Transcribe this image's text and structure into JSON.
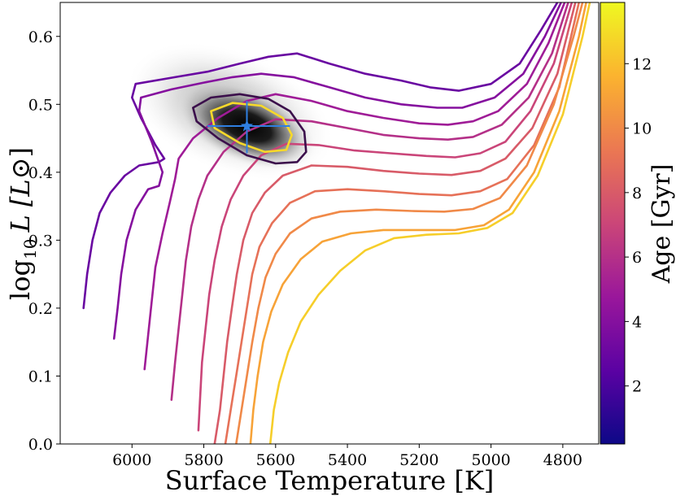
{
  "chart_data": {
    "type": "line",
    "title": "",
    "xlabel": "Surface Temperature [K]",
    "ylabel_main": "log",
    "ylabel_sub": "10",
    "ylabel_rest": "L [L",
    "ylabel_sun": "⊙",
    "ylabel_close": "]",
    "x_reversed": true,
    "xlim": [
      6200,
      4700
    ],
    "ylim": [
      0.0,
      0.65
    ],
    "xticks": [
      6000,
      5800,
      5600,
      5400,
      5200,
      5000,
      4800
    ],
    "yticks": [
      0.0,
      0.1,
      0.2,
      0.3,
      0.4,
      0.5,
      0.6
    ],
    "colorbar": {
      "label": "Age [Gyr]",
      "range": [
        0.2,
        13.9
      ],
      "ticks": [
        2,
        4,
        6,
        8,
        10,
        12
      ],
      "colormap": [
        "#0d0887",
        "#5b02a3",
        "#9a179b",
        "#cb4678",
        "#eb7852",
        "#fbb32f",
        "#eff821"
      ]
    },
    "isochrones": [
      {
        "age": 3.0,
        "points": [
          [
            6135,
            0.2
          ],
          [
            6125,
            0.25
          ],
          [
            6110,
            0.3
          ],
          [
            6090,
            0.34
          ],
          [
            6060,
            0.37
          ],
          [
            6020,
            0.395
          ],
          [
            5980,
            0.41
          ],
          [
            5925,
            0.415
          ],
          [
            5910,
            0.42
          ],
          [
            5935,
            0.44
          ],
          [
            5975,
            0.48
          ],
          [
            6000,
            0.51
          ],
          [
            5990,
            0.53
          ],
          [
            5880,
            0.54
          ],
          [
            5790,
            0.548
          ],
          [
            5700,
            0.56
          ],
          [
            5620,
            0.57
          ],
          [
            5540,
            0.575
          ],
          [
            5450,
            0.56
          ],
          [
            5350,
            0.545
          ],
          [
            5250,
            0.535
          ],
          [
            5170,
            0.525
          ],
          [
            5090,
            0.52
          ],
          [
            5000,
            0.53
          ],
          [
            4920,
            0.56
          ],
          [
            4860,
            0.61
          ],
          [
            4815,
            0.65
          ]
        ]
      },
      {
        "age": 4.0,
        "points": [
          [
            6050,
            0.155
          ],
          [
            6040,
            0.2
          ],
          [
            6030,
            0.25
          ],
          [
            6015,
            0.3
          ],
          [
            5990,
            0.345
          ],
          [
            5955,
            0.375
          ],
          [
            5925,
            0.38
          ],
          [
            5915,
            0.4
          ],
          [
            5945,
            0.445
          ],
          [
            5980,
            0.49
          ],
          [
            5975,
            0.51
          ],
          [
            5890,
            0.522
          ],
          [
            5800,
            0.532
          ],
          [
            5720,
            0.54
          ],
          [
            5640,
            0.545
          ],
          [
            5550,
            0.54
          ],
          [
            5450,
            0.525
          ],
          [
            5350,
            0.51
          ],
          [
            5250,
            0.5
          ],
          [
            5150,
            0.495
          ],
          [
            5080,
            0.495
          ],
          [
            4990,
            0.51
          ],
          [
            4910,
            0.545
          ],
          [
            4850,
            0.6
          ],
          [
            4805,
            0.65
          ]
        ]
      },
      {
        "age": 5.0,
        "points": [
          [
            5965,
            0.11
          ],
          [
            5955,
            0.16
          ],
          [
            5945,
            0.21
          ],
          [
            5935,
            0.26
          ],
          [
            5915,
            0.31
          ],
          [
            5895,
            0.355
          ],
          [
            5880,
            0.39
          ],
          [
            5870,
            0.42
          ],
          [
            5830,
            0.45
          ],
          [
            5760,
            0.48
          ],
          [
            5680,
            0.505
          ],
          [
            5600,
            0.515
          ],
          [
            5500,
            0.505
          ],
          [
            5400,
            0.49
          ],
          [
            5300,
            0.48
          ],
          [
            5200,
            0.472
          ],
          [
            5120,
            0.47
          ],
          [
            5050,
            0.475
          ],
          [
            4980,
            0.49
          ],
          [
            4900,
            0.53
          ],
          [
            4840,
            0.59
          ],
          [
            4795,
            0.65
          ]
        ]
      },
      {
        "age": 6.0,
        "points": [
          [
            5890,
            0.065
          ],
          [
            5880,
            0.12
          ],
          [
            5870,
            0.17
          ],
          [
            5860,
            0.22
          ],
          [
            5850,
            0.27
          ],
          [
            5835,
            0.32
          ],
          [
            5815,
            0.36
          ],
          [
            5790,
            0.395
          ],
          [
            5745,
            0.43
          ],
          [
            5680,
            0.46
          ],
          [
            5600,
            0.478
          ],
          [
            5500,
            0.475
          ],
          [
            5400,
            0.465
          ],
          [
            5300,
            0.455
          ],
          [
            5200,
            0.45
          ],
          [
            5120,
            0.448
          ],
          [
            5050,
            0.452
          ],
          [
            4970,
            0.47
          ],
          [
            4895,
            0.51
          ],
          [
            4830,
            0.575
          ],
          [
            4785,
            0.65
          ]
        ]
      },
      {
        "age": 7.0,
        "points": [
          [
            5815,
            0.02
          ],
          [
            5810,
            0.07
          ],
          [
            5805,
            0.12
          ],
          [
            5795,
            0.17
          ],
          [
            5785,
            0.22
          ],
          [
            5770,
            0.27
          ],
          [
            5750,
            0.32
          ],
          [
            5725,
            0.36
          ],
          [
            5690,
            0.395
          ],
          [
            5640,
            0.425
          ],
          [
            5570,
            0.442
          ],
          [
            5480,
            0.44
          ],
          [
            5380,
            0.432
          ],
          [
            5280,
            0.428
          ],
          [
            5180,
            0.424
          ],
          [
            5100,
            0.422
          ],
          [
            5030,
            0.428
          ],
          [
            4960,
            0.445
          ],
          [
            4890,
            0.49
          ],
          [
            4825,
            0.56
          ],
          [
            4775,
            0.65
          ]
        ]
      },
      {
        "age": 8.0,
        "points": [
          [
            5770,
            0.0
          ],
          [
            5755,
            0.05
          ],
          [
            5745,
            0.1
          ],
          [
            5735,
            0.15
          ],
          [
            5722,
            0.2
          ],
          [
            5708,
            0.25
          ],
          [
            5690,
            0.3
          ],
          [
            5665,
            0.34
          ],
          [
            5630,
            0.37
          ],
          [
            5580,
            0.395
          ],
          [
            5500,
            0.41
          ],
          [
            5400,
            0.408
          ],
          [
            5300,
            0.402
          ],
          [
            5200,
            0.398
          ],
          [
            5110,
            0.396
          ],
          [
            5030,
            0.402
          ],
          [
            4960,
            0.42
          ],
          [
            4885,
            0.465
          ],
          [
            4815,
            0.545
          ],
          [
            4765,
            0.65
          ]
        ]
      },
      {
        "age": 9.0,
        "points": [
          [
            5740,
            0.0
          ],
          [
            5725,
            0.05
          ],
          [
            5710,
            0.1
          ],
          [
            5695,
            0.15
          ],
          [
            5680,
            0.2
          ],
          [
            5665,
            0.25
          ],
          [
            5645,
            0.29
          ],
          [
            5610,
            0.325
          ],
          [
            5560,
            0.355
          ],
          [
            5490,
            0.372
          ],
          [
            5400,
            0.375
          ],
          [
            5300,
            0.372
          ],
          [
            5200,
            0.368
          ],
          [
            5110,
            0.366
          ],
          [
            5030,
            0.372
          ],
          [
            4955,
            0.39
          ],
          [
            4880,
            0.44
          ],
          [
            4810,
            0.525
          ],
          [
            4755,
            0.65
          ]
        ]
      },
      {
        "age": 10.0,
        "points": [
          [
            5710,
            0.0
          ],
          [
            5695,
            0.05
          ],
          [
            5680,
            0.1
          ],
          [
            5665,
            0.15
          ],
          [
            5648,
            0.2
          ],
          [
            5628,
            0.245
          ],
          [
            5600,
            0.28
          ],
          [
            5560,
            0.31
          ],
          [
            5500,
            0.332
          ],
          [
            5420,
            0.342
          ],
          [
            5320,
            0.345
          ],
          [
            5220,
            0.343
          ],
          [
            5130,
            0.342
          ],
          [
            5050,
            0.346
          ],
          [
            4975,
            0.362
          ],
          [
            4900,
            0.41
          ],
          [
            4825,
            0.5
          ],
          [
            4770,
            0.6
          ],
          [
            4745,
            0.65
          ]
        ]
      },
      {
        "age": 11.0,
        "points": [
          [
            5670,
            0.0
          ],
          [
            5662,
            0.05
          ],
          [
            5650,
            0.1
          ],
          [
            5635,
            0.15
          ],
          [
            5612,
            0.195
          ],
          [
            5580,
            0.235
          ],
          [
            5530,
            0.272
          ],
          [
            5470,
            0.298
          ],
          [
            5390,
            0.31
          ],
          [
            5300,
            0.315
          ],
          [
            5200,
            0.315
          ],
          [
            5100,
            0.315
          ],
          [
            5020,
            0.322
          ],
          [
            4950,
            0.345
          ],
          [
            4880,
            0.4
          ],
          [
            4810,
            0.49
          ],
          [
            4755,
            0.6
          ],
          [
            4735,
            0.65
          ]
        ]
      },
      {
        "age": 12.5,
        "points": [
          [
            5615,
            0.0
          ],
          [
            5605,
            0.05
          ],
          [
            5590,
            0.09
          ],
          [
            5565,
            0.135
          ],
          [
            5530,
            0.18
          ],
          [
            5480,
            0.22
          ],
          [
            5420,
            0.255
          ],
          [
            5350,
            0.285
          ],
          [
            5270,
            0.303
          ],
          [
            5180,
            0.308
          ],
          [
            5090,
            0.31
          ],
          [
            5010,
            0.318
          ],
          [
            4940,
            0.34
          ],
          [
            4870,
            0.395
          ],
          [
            4800,
            0.485
          ],
          [
            4745,
            0.6
          ],
          [
            4725,
            0.65
          ]
        ]
      }
    ],
    "posterior": {
      "star": [
        5680,
        0.468
      ],
      "error_x": [
        5560,
        5790
      ],
      "error_y": [
        0.428,
        0.505
      ],
      "contour_outer": [
        [
          5830,
          0.495
        ],
        [
          5780,
          0.51
        ],
        [
          5700,
          0.515
        ],
        [
          5620,
          0.508
        ],
        [
          5560,
          0.49
        ],
        [
          5520,
          0.46
        ],
        [
          5515,
          0.43
        ],
        [
          5540,
          0.415
        ],
        [
          5600,
          0.413
        ],
        [
          5680,
          0.425
        ],
        [
          5760,
          0.45
        ],
        [
          5820,
          0.475
        ]
      ],
      "contour_inner": [
        [
          5780,
          0.49
        ],
        [
          5720,
          0.502
        ],
        [
          5640,
          0.498
        ],
        [
          5580,
          0.48
        ],
        [
          5555,
          0.455
        ],
        [
          5570,
          0.433
        ],
        [
          5630,
          0.43
        ],
        [
          5700,
          0.443
        ],
        [
          5770,
          0.465
        ]
      ],
      "outer_color": "#3b0f4b",
      "inner_color": "#f7d92a",
      "star_color": "#2f7fe0"
    }
  }
}
